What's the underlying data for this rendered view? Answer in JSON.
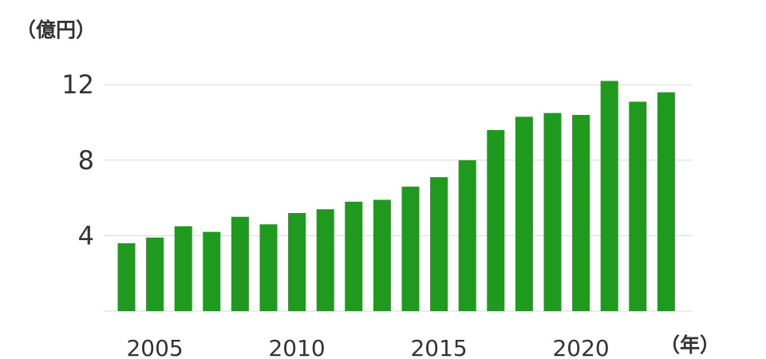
{
  "chart_data": {
    "type": "bar",
    "ylabel": "（億円）",
    "xlabel": "（年）",
    "categories": [
      "2004",
      "2005",
      "2006",
      "2007",
      "2008",
      "2009",
      "2010",
      "2011",
      "2012",
      "2013",
      "2014",
      "2015",
      "2016",
      "2017",
      "2018",
      "2019",
      "2020",
      "2021",
      "2022",
      "2023"
    ],
    "x_tick_labels": [
      "2005",
      "2010",
      "2015",
      "2020"
    ],
    "y_ticks": [
      "4",
      "8",
      "12"
    ],
    "ylim": [
      0,
      12.4
    ],
    "grid": true,
    "series": [
      {
        "values": [
          3.6,
          3.9,
          4.5,
          4.2,
          5.0,
          4.6,
          5.2,
          5.4,
          5.8,
          5.9,
          6.6,
          7.1,
          8.0,
          9.6,
          10.3,
          10.5,
          10.4,
          12.2,
          11.1,
          11.6
        ],
        "color": "#1f9a1f"
      }
    ],
    "gridline_color": "#d9d9d9",
    "text_color": "#333333"
  }
}
